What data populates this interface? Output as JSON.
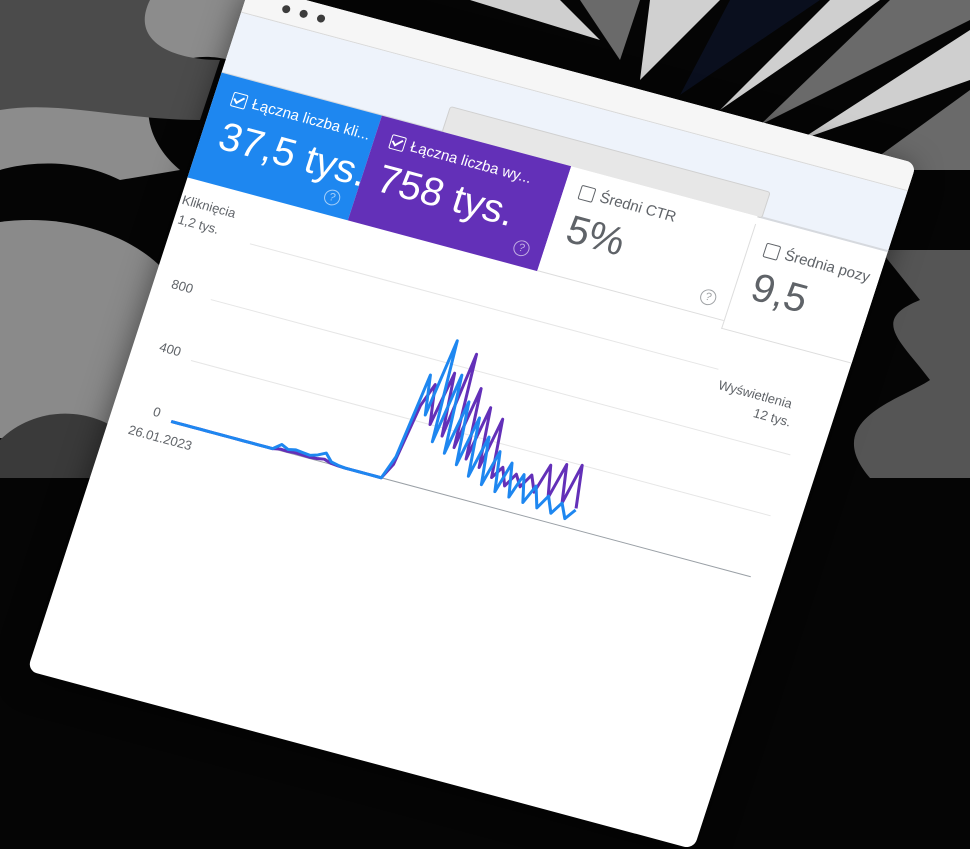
{
  "window": {
    "controls": [
      "close",
      "minimize",
      "maximize"
    ]
  },
  "cards": [
    {
      "label": "Łączna liczba kli...",
      "value": "37,5 tys.",
      "checked": true,
      "color": "#1e87f0"
    },
    {
      "label": "Łączna liczba wy...",
      "value": "758 tys.",
      "checked": true,
      "color": "#6330b8"
    },
    {
      "label": "Średni CTR",
      "value": "5%",
      "checked": false
    },
    {
      "label": "Średnia pozy",
      "value": "9,5",
      "checked": false
    }
  ],
  "help_icon": "?",
  "chart_data": {
    "type": "line",
    "left_axis": {
      "label": "Kliknięcia",
      "ticks": [
        "1,2 tys.",
        "800",
        "400",
        "0"
      ],
      "range": [
        0,
        1200
      ]
    },
    "right_axis": {
      "label": "Wyświetlenia",
      "ticks": [
        "12 tys."
      ],
      "range": [
        0,
        12000
      ]
    },
    "x_tick_labels": [
      "26.01.2023"
    ],
    "grid": true,
    "series": [
      {
        "axis": "left",
        "color": "#1e87f0",
        "values": [
          0,
          0,
          0,
          0,
          0,
          0,
          0,
          0,
          0,
          0,
          0,
          0,
          0,
          0,
          0,
          40,
          20,
          30,
          25,
          20,
          35,
          60,
          15,
          5,
          0,
          0,
          0,
          0,
          0,
          0,
          150,
          700,
          450,
          950,
          300,
          750,
          250,
          600,
          200,
          520,
          150,
          420,
          120,
          350,
          100,
          300,
          90,
          250,
          80,
          200,
          70,
          160,
          60,
          140,
          50,
          120
        ]
      },
      {
        "axis": "right",
        "color": "#6330b8",
        "values": [
          0,
          0,
          0,
          0,
          0,
          0,
          0,
          0,
          0,
          0,
          0,
          0,
          0,
          0,
          0,
          100,
          80,
          120,
          100,
          80,
          120,
          200,
          60,
          20,
          0,
          0,
          0,
          0,
          0,
          0,
          1000,
          5000,
          6500,
          4000,
          7500,
          3500,
          9000,
          3000,
          7000,
          2500,
          6000,
          2200,
          5500,
          1800,
          2600,
          1500,
          2400,
          1700,
          2600,
          1600,
          3500,
          1500,
          3800,
          1400,
          4000,
          1300
        ]
      }
    ]
  }
}
